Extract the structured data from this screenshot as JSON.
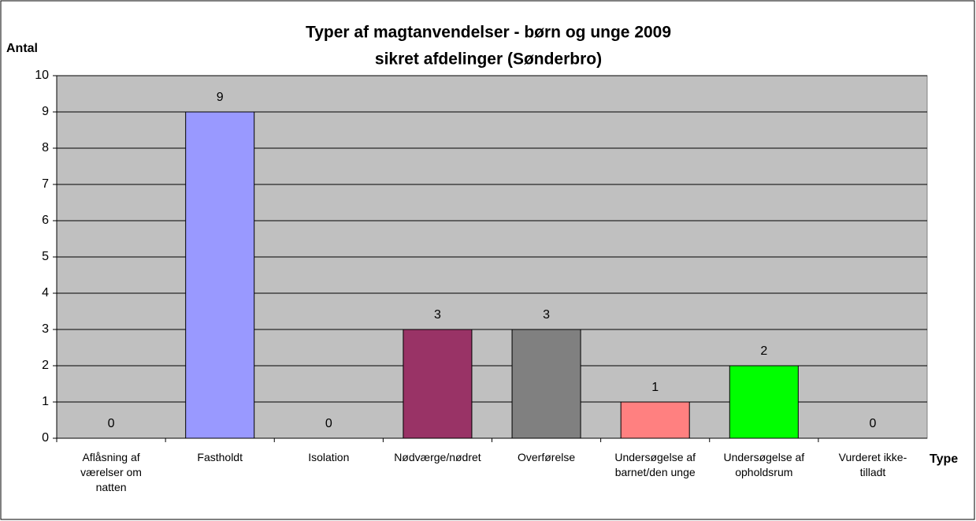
{
  "chart_data": {
    "type": "bar",
    "title": [
      "Typer af magtanvendelser - børn og unge 2009",
      "sikret afdelinger (Sønderbro)"
    ],
    "y_label": "Antal",
    "x_label": "Type",
    "categories": [
      "Aflåsning af værelser om natten",
      "Fastholdt",
      "Isolation",
      "Nødværge/nødret",
      "Overførelse",
      "Undersøgelse af barnet/den unge",
      "Undersøgelse af opholdsrum",
      "Vurderet ikke-tilladt"
    ],
    "values": [
      0,
      9,
      0,
      3,
      3,
      1,
      2,
      0
    ],
    "colors": [
      "#ffffcc",
      "#9999ff",
      "#ccffff",
      "#993366",
      "#808080",
      "#ff8080",
      "#00ff00",
      "#ccccff"
    ],
    "ylim": [
      0,
      10
    ],
    "yticks": [
      0,
      1,
      2,
      3,
      4,
      5,
      6,
      7,
      8,
      9,
      10
    ],
    "grid": true
  }
}
